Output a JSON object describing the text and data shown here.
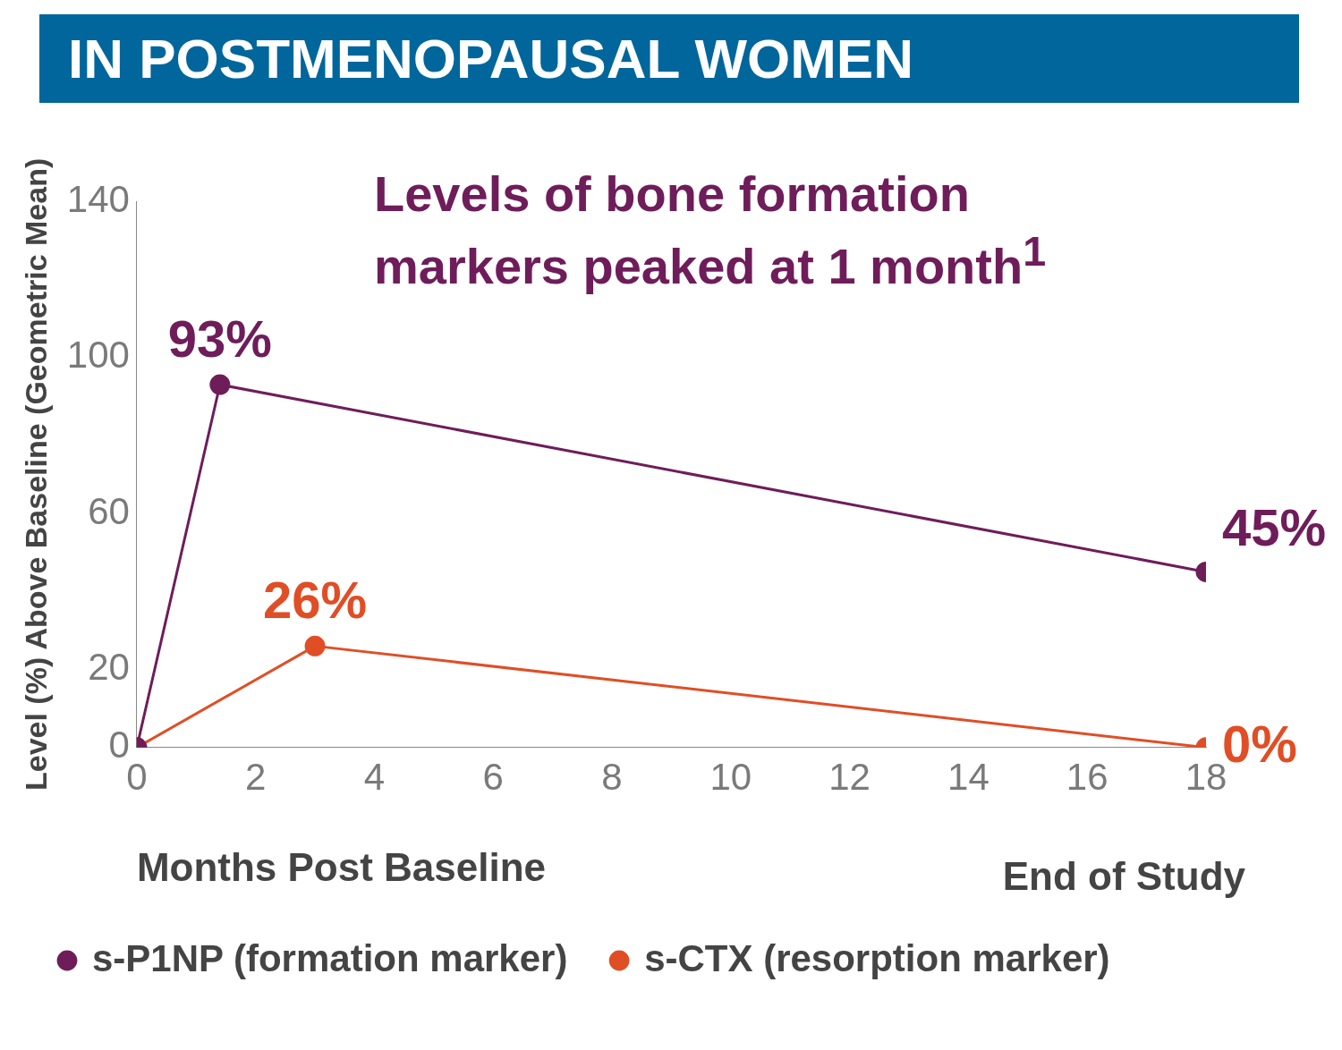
{
  "chart_data": {
    "type": "line",
    "title": "IN POSTMENOPAUSAL WOMEN",
    "xlabel": "Months Post Baseline",
    "ylabel": "Level (%) Above Baseline (Geometric Mean)",
    "annotations": [
      "Levels of bone formation markers peaked at 1 month$^{1}$",
      "End of Study"
    ],
    "series": [
      {
        "name": "s-P1NP (formation marker)",
        "color": "#6e1d5a",
        "x": [
          0,
          1.4,
          18
        ],
        "values": [
          0,
          93,
          45
        ],
        "value_labels": [
          null,
          "93%",
          "45%"
        ]
      },
      {
        "name": "s-CTX (resorption marker)",
        "color": "#e04e26",
        "x": [
          0,
          3,
          18
        ],
        "values": [
          0,
          26,
          0
        ],
        "value_labels": [
          null,
          "26%",
          "0%"
        ]
      }
    ],
    "xlim": [
      0,
      18
    ],
    "xticks": [
      0,
      2,
      4,
      6,
      8,
      10,
      12,
      14,
      16,
      18
    ],
    "ylim": [
      0,
      140
    ],
    "yticks": [
      0,
      20,
      60,
      100,
      140
    ],
    "grid": false,
    "legend": "bottom",
    "marker": "circle",
    "line_style": "solid"
  }
}
